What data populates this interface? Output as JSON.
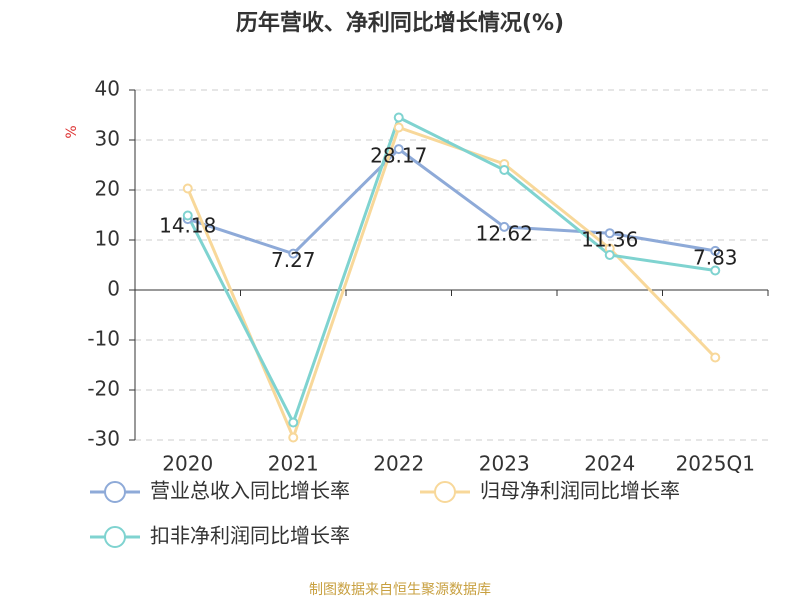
{
  "chart_data": {
    "type": "line",
    "title": "历年营收、净利同比增长情况(%)",
    "y_label": "%",
    "categories": [
      "2020",
      "2021",
      "2022",
      "2023",
      "2024",
      "2025Q1"
    ],
    "series": [
      {
        "name": "营业总收入同比增长率",
        "color": "#8eaad8",
        "values": [
          14.18,
          7.27,
          28.17,
          12.62,
          11.36,
          7.83
        ],
        "show_labels": true
      },
      {
        "name": "归母净利润同比增长率",
        "color": "#f8d89a",
        "values": [
          20.3,
          -29.5,
          32.5,
          25.2,
          8.3,
          -13.5
        ],
        "show_labels": false
      },
      {
        "name": "扣非净利润同比增长率",
        "color": "#7fd3d0",
        "values": [
          14.9,
          -26.5,
          34.5,
          24.0,
          7.0,
          3.9
        ],
        "show_labels": false
      }
    ],
    "ylim": [
      -30,
      40
    ],
    "yticks": [
      -30,
      -20,
      -10,
      0,
      10,
      20,
      30,
      40
    ],
    "grid": true,
    "legend": "bottom",
    "source": "制图数据来自恒生聚源数据库"
  }
}
